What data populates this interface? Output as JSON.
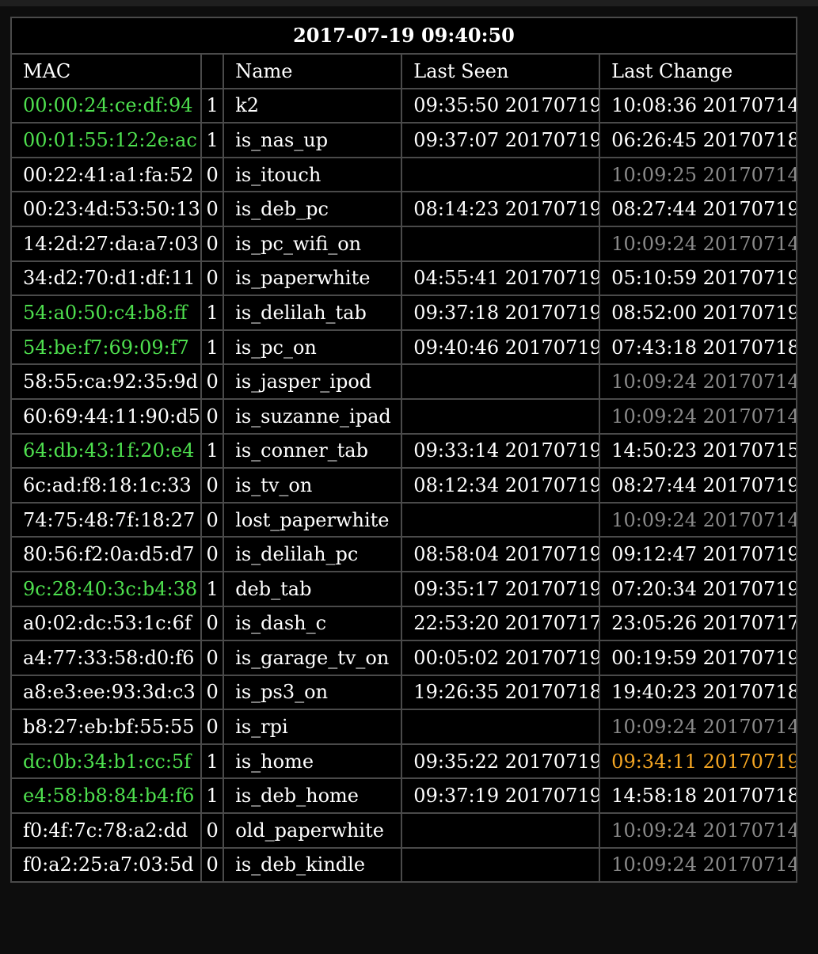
{
  "timestamp": "2017-07-19 09:40:50",
  "columns": {
    "mac": "MAC",
    "state": "",
    "name": "Name",
    "last_seen": "Last Seen",
    "last_change": "Last Change"
  },
  "colors": {
    "online": "#4ee04e",
    "offline": "#ffffff",
    "stale": "#8a8a8a",
    "recent_change": "#f5a623",
    "background": "#000000",
    "grid": "#4a4a4a"
  },
  "rows": [
    {
      "mac": "00:00:24:ce:df:94",
      "state": "1",
      "name": "k2",
      "last_seen": "09:35:50 20170719",
      "last_change": "10:08:36 20170714",
      "change_style": "normal"
    },
    {
      "mac": "00:01:55:12:2e:ac",
      "state": "1",
      "name": "is_nas_up",
      "last_seen": "09:37:07 20170719",
      "last_change": "06:26:45 20170718",
      "change_style": "normal"
    },
    {
      "mac": "00:22:41:a1:fa:52",
      "state": "0",
      "name": "is_itouch",
      "last_seen": "",
      "last_change": "10:09:25 20170714",
      "change_style": "stale"
    },
    {
      "mac": "00:23:4d:53:50:13",
      "state": "0",
      "name": "is_deb_pc",
      "last_seen": "08:14:23 20170719",
      "last_change": "08:27:44 20170719",
      "change_style": "normal"
    },
    {
      "mac": "14:2d:27:da:a7:03",
      "state": "0",
      "name": "is_pc_wifi_on",
      "last_seen": "",
      "last_change": "10:09:24 20170714",
      "change_style": "stale"
    },
    {
      "mac": "34:d2:70:d1:df:11",
      "state": "0",
      "name": "is_paperwhite",
      "last_seen": "04:55:41 20170719",
      "last_change": "05:10:59 20170719",
      "change_style": "normal"
    },
    {
      "mac": "54:a0:50:c4:b8:ff",
      "state": "1",
      "name": "is_delilah_tab",
      "last_seen": "09:37:18 20170719",
      "last_change": "08:52:00 20170719",
      "change_style": "normal"
    },
    {
      "mac": "54:be:f7:69:09:f7",
      "state": "1",
      "name": "is_pc_on",
      "last_seen": "09:40:46 20170719",
      "last_change": "07:43:18 20170718",
      "change_style": "normal"
    },
    {
      "mac": "58:55:ca:92:35:9d",
      "state": "0",
      "name": "is_jasper_ipod",
      "last_seen": "",
      "last_change": "10:09:24 20170714",
      "change_style": "stale"
    },
    {
      "mac": "60:69:44:11:90:d5",
      "state": "0",
      "name": "is_suzanne_ipad",
      "last_seen": "",
      "last_change": "10:09:24 20170714",
      "change_style": "stale"
    },
    {
      "mac": "64:db:43:1f:20:e4",
      "state": "1",
      "name": "is_conner_tab",
      "last_seen": "09:33:14 20170719",
      "last_change": "14:50:23 20170715",
      "change_style": "normal"
    },
    {
      "mac": "6c:ad:f8:18:1c:33",
      "state": "0",
      "name": "is_tv_on",
      "last_seen": "08:12:34 20170719",
      "last_change": "08:27:44 20170719",
      "change_style": "normal"
    },
    {
      "mac": "74:75:48:7f:18:27",
      "state": "0",
      "name": "lost_paperwhite",
      "last_seen": "",
      "last_change": "10:09:24 20170714",
      "change_style": "stale"
    },
    {
      "mac": "80:56:f2:0a:d5:d7",
      "state": "0",
      "name": "is_delilah_pc",
      "last_seen": "08:58:04 20170719",
      "last_change": "09:12:47 20170719",
      "change_style": "normal"
    },
    {
      "mac": "9c:28:40:3c:b4:38",
      "state": "1",
      "name": "deb_tab",
      "last_seen": "09:35:17 20170719",
      "last_change": "07:20:34 20170719",
      "change_style": "normal"
    },
    {
      "mac": "a0:02:dc:53:1c:6f",
      "state": "0",
      "name": "is_dash_c",
      "last_seen": "22:53:20 20170717",
      "last_change": "23:05:26 20170717",
      "change_style": "normal"
    },
    {
      "mac": "a4:77:33:58:d0:f6",
      "state": "0",
      "name": "is_garage_tv_on",
      "last_seen": "00:05:02 20170719",
      "last_change": "00:19:59 20170719",
      "change_style": "normal"
    },
    {
      "mac": "a8:e3:ee:93:3d:c3",
      "state": "0",
      "name": "is_ps3_on",
      "last_seen": "19:26:35 20170718",
      "last_change": "19:40:23 20170718",
      "change_style": "normal"
    },
    {
      "mac": "b8:27:eb:bf:55:55",
      "state": "0",
      "name": "is_rpi",
      "last_seen": "",
      "last_change": "10:09:24 20170714",
      "change_style": "stale"
    },
    {
      "mac": "dc:0b:34:b1:cc:5f",
      "state": "1",
      "name": "is_home",
      "last_seen": "09:35:22 20170719",
      "last_change": "09:34:11 20170719",
      "change_style": "recent"
    },
    {
      "mac": "e4:58:b8:84:b4:f6",
      "state": "1",
      "name": "is_deb_home",
      "last_seen": "09:37:19 20170719",
      "last_change": "14:58:18 20170718",
      "change_style": "normal"
    },
    {
      "mac": "f0:4f:7c:78:a2:dd",
      "state": "0",
      "name": "old_paperwhite",
      "last_seen": "",
      "last_change": "10:09:24 20170714",
      "change_style": "stale"
    },
    {
      "mac": "f0:a2:25:a7:03:5d",
      "state": "0",
      "name": "is_deb_kindle",
      "last_seen": "",
      "last_change": "10:09:24 20170714",
      "change_style": "stale"
    }
  ]
}
